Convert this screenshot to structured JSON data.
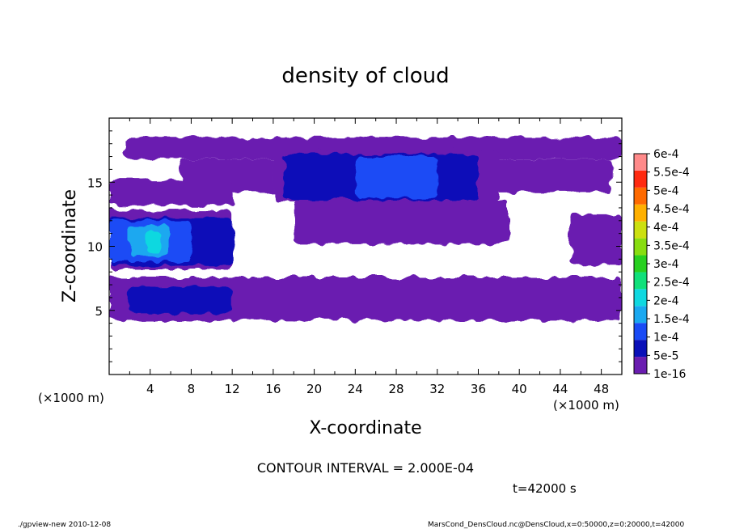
{
  "chart_data": {
    "type": "heatmap",
    "title": "density of cloud",
    "xlabel": "X-coordinate",
    "ylabel": "Z-coordinate",
    "x_unit_left": "(×1000 m)",
    "x_unit_right": "(×1000 m)",
    "xlim": [
      0,
      50
    ],
    "ylim": [
      0,
      20
    ],
    "x_ticks": [
      "4",
      "8",
      "12",
      "16",
      "20",
      "24",
      "28",
      "32",
      "36",
      "40",
      "44",
      "48"
    ],
    "y_ticks": [
      "5",
      "10",
      "15"
    ],
    "legend_placement": "right",
    "colorbar": {
      "labels": [
        "1e-16",
        "5e-5",
        "1e-4",
        "1.5e-4",
        "2e-4",
        "2.5e-4",
        "3e-4",
        "3.5e-4",
        "4e-4",
        "4.5e-4",
        "5e-4",
        "5.5e-4",
        "6e-4"
      ],
      "colors": [
        "#6a1db0",
        "#0a10b8",
        "#1a4bf5",
        "#1aa8f0",
        "#10d8e0",
        "#10e07a",
        "#28d020",
        "#88dd10",
        "#cce010",
        "#ffb000",
        "#ff6a00",
        "#ff2a10",
        "#ff8a8a"
      ]
    },
    "colors": {
      "very_low": "#6a1db0",
      "low": "#0a10b8",
      "mid": "#1a4bf5",
      "high": "#1aa8f0",
      "peak": "#10d8e0"
    },
    "regions": [
      {
        "level": "very_low",
        "x": [
          1.5,
          50
        ],
        "z": [
          16.8,
          18.5
        ]
      },
      {
        "level": "very_low",
        "x": [
          7,
          49
        ],
        "z": [
          14.2,
          16.8
        ]
      },
      {
        "level": "very_low",
        "x": [
          0,
          12
        ],
        "z": [
          13.2,
          15.2
        ]
      },
      {
        "level": "very_low",
        "x": [
          16,
          38
        ],
        "z": [
          13.5,
          17.5
        ]
      },
      {
        "level": "low",
        "x": [
          17,
          36
        ],
        "z": [
          13.6,
          17.2
        ]
      },
      {
        "level": "mid",
        "x": [
          24,
          32
        ],
        "z": [
          13.8,
          17.0
        ]
      },
      {
        "level": "very_low",
        "x": [
          0,
          12
        ],
        "z": [
          8.2,
          12.8
        ]
      },
      {
        "level": "very_low",
        "x": [
          18,
          39
        ],
        "z": [
          10.2,
          13.6
        ]
      },
      {
        "level": "very_low",
        "x": [
          45,
          50
        ],
        "z": [
          8.5,
          12.5
        ]
      },
      {
        "level": "very_low",
        "x": [
          0,
          50
        ],
        "z": [
          4.2,
          7.6
        ]
      },
      {
        "level": "low",
        "x": [
          0,
          12
        ],
        "z": [
          8.5,
          12.2
        ]
      },
      {
        "level": "mid",
        "x": [
          0,
          8
        ],
        "z": [
          8.8,
          12.0
        ]
      },
      {
        "level": "high",
        "x": [
          2,
          6
        ],
        "z": [
          9.2,
          11.6
        ]
      },
      {
        "level": "peak",
        "x": [
          3.5,
          5
        ],
        "z": [
          9.6,
          11.2
        ]
      },
      {
        "level": "low",
        "x": [
          2,
          12
        ],
        "z": [
          4.8,
          6.8
        ]
      },
      {
        "level": "very_low",
        "x": [
          0,
          6
        ],
        "z": [
          0,
          0
        ]
      }
    ]
  },
  "contour_text": "CONTOUR INTERVAL = 2.000E-04",
  "time_text": "t=42000 s",
  "footer_left": "./gpview-new  2010-12-08",
  "footer_right": "MarsCond_DensCloud.nc@DensCloud,x=0:50000,z=0:20000,t=42000"
}
